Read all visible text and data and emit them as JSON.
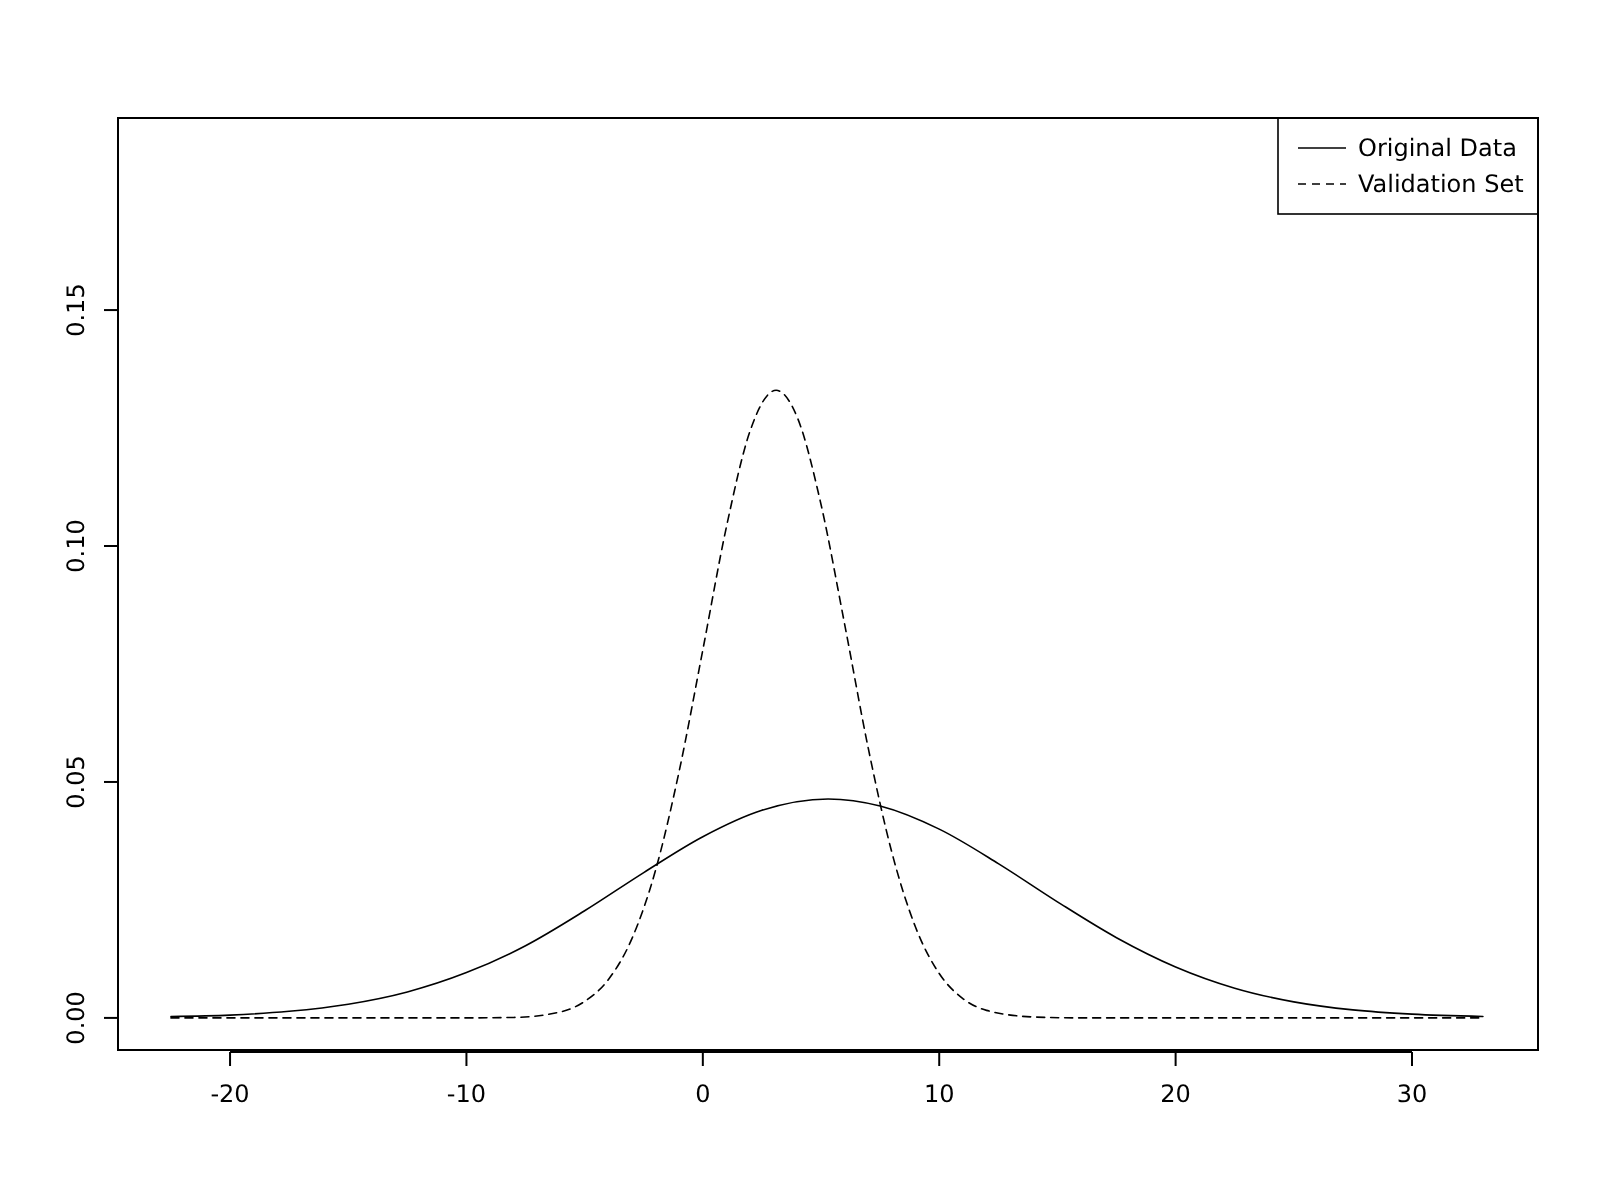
{
  "chart_data": {
    "type": "line",
    "legend": "top right",
    "xlim": [
      -24.74,
      35.33
    ],
    "ylim": [
      -0.0068,
      0.1907
    ],
    "xticks": [
      -20,
      -10,
      0,
      10,
      20,
      30
    ],
    "yticks": [
      {
        "value": 0,
        "label": "0.00"
      },
      {
        "value": 0.05,
        "label": "0.05"
      },
      {
        "value": 0.1,
        "label": "0.10"
      },
      {
        "value": 0.15,
        "label": "0.15"
      }
    ],
    "series": [
      {
        "name": "Original Data",
        "color": "#000000",
        "line_style": "solid",
        "x": [
          -22.5,
          -20,
          -17.5,
          -15,
          -12.5,
          -10,
          -7.5,
          -5,
          -2.5,
          0,
          2.5,
          5.3,
          7.5,
          10,
          12.5,
          15,
          17.5,
          20,
          22.5,
          25,
          27.5,
          30,
          33
        ],
        "values": [
          0.0003,
          0.0006,
          0.0014,
          0.0029,
          0.0055,
          0.0096,
          0.0153,
          0.0227,
          0.0308,
          0.0384,
          0.044,
          0.0464,
          0.0449,
          0.04,
          0.0327,
          0.0246,
          0.017,
          0.0108,
          0.0063,
          0.0034,
          0.0017,
          0.0008,
          0.0003
        ]
      },
      {
        "name": "Validation Set",
        "color": "#000000",
        "line_style": "dashed",
        "x": [
          -22.5,
          -15,
          -10,
          -8,
          -6,
          -5,
          -4,
          -3,
          -2,
          -1,
          0,
          1,
          2,
          3.1,
          4,
          5,
          6,
          7,
          8,
          9,
          10,
          11,
          12,
          14,
          16,
          25,
          33
        ],
        "values": [
          0,
          0,
          0,
          0.0001,
          0.0013,
          0.0035,
          0.0081,
          0.0168,
          0.0313,
          0.0523,
          0.078,
          0.1041,
          0.1244,
          0.133,
          0.1272,
          0.1088,
          0.0834,
          0.0571,
          0.035,
          0.0192,
          0.0094,
          0.0041,
          0.0016,
          0.0002,
          0,
          0,
          0
        ]
      }
    ]
  }
}
